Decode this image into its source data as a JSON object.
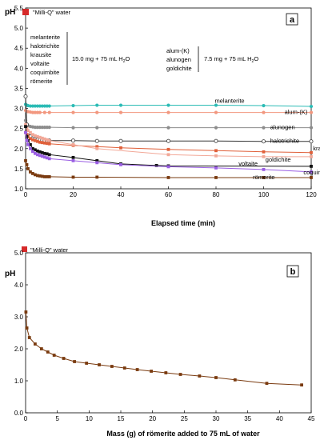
{
  "chart_data": [
    {
      "type": "line",
      "panel_label": "a",
      "ylabel": "pH",
      "xlabel": "Elapsed time (min)",
      "xlim": [
        0,
        120
      ],
      "ylim": [
        1.0,
        5.5
      ],
      "x_ticks": [
        0,
        20,
        40,
        60,
        80,
        100,
        120
      ],
      "y_ticks": [
        1.0,
        1.5,
        2.0,
        2.5,
        3.0,
        3.5,
        4.0,
        4.5,
        5.0,
        5.5
      ],
      "y_tick_labels": [
        "1.0",
        "1.5",
        "2.0",
        "2.5",
        "3.0",
        "3.5",
        "4.0",
        "4.5",
        "5.0",
        "5.5"
      ],
      "reference": {
        "label": "\"Milli-Q\" water",
        "value": 5.45,
        "color": "#d62a2a"
      },
      "group_left": {
        "minerals": [
          "melanterite",
          "halotrichite",
          "krausite",
          "voltaite",
          "coquimbite",
          "römerite"
        ],
        "condition_prefix": "15.0 mg + 75 mL H",
        "condition_sub": "2",
        "condition_suffix": "O"
      },
      "group_right": {
        "minerals": [
          "alum-(K)",
          "alunogen",
          "goldichite"
        ],
        "condition_prefix": "7.5 mg + 75 mL H",
        "condition_sub": "2",
        "condition_suffix": "O"
      },
      "series": [
        {
          "name": "melanterite",
          "color": "#2bbbb5",
          "marker": "circle",
          "x": [
            0,
            0.5,
            1,
            2,
            3,
            4,
            5,
            6,
            7,
            8,
            9,
            10,
            20,
            30,
            40,
            60,
            80,
            100,
            120
          ],
          "y": [
            3.1,
            3.08,
            3.07,
            3.06,
            3.06,
            3.06,
            3.06,
            3.06,
            3.06,
            3.06,
            3.06,
            3.06,
            3.07,
            3.08,
            3.08,
            3.08,
            3.08,
            3.07,
            3.05
          ]
        },
        {
          "name": "alum-(K)",
          "color": "#f2977f",
          "marker": "circle",
          "x": [
            0,
            0.5,
            1,
            2,
            3,
            4,
            5,
            6,
            8,
            10,
            20,
            30,
            40,
            60,
            80,
            100,
            120
          ],
          "y": [
            2.95,
            2.93,
            2.92,
            2.91,
            2.9,
            2.9,
            2.9,
            2.9,
            2.9,
            2.9,
            2.9,
            2.9,
            2.9,
            2.9,
            2.9,
            2.9,
            2.9
          ]
        },
        {
          "name": "alunogen",
          "color": "#8c8c8c",
          "marker": "circle",
          "x": [
            0,
            0.5,
            1,
            2,
            3,
            4,
            5,
            6,
            7,
            8,
            9,
            10,
            20,
            30,
            60,
            80,
            100,
            120
          ],
          "y": [
            2.7,
            2.6,
            2.57,
            2.55,
            2.54,
            2.53,
            2.53,
            2.53,
            2.53,
            2.53,
            2.53,
            2.53,
            2.52,
            2.52,
            2.52,
            2.52,
            2.52,
            2.52
          ]
        },
        {
          "name": "halotrichite",
          "color": "#333333",
          "marker": "circle-open",
          "x": [
            0,
            0.5,
            1,
            2,
            3,
            4,
            5,
            6,
            7,
            8,
            9,
            10,
            20,
            30,
            40,
            60,
            80,
            100,
            120
          ],
          "y": [
            3.3,
            2.6,
            2.4,
            2.3,
            2.25,
            2.23,
            2.22,
            2.21,
            2.21,
            2.2,
            2.2,
            2.2,
            2.2,
            2.19,
            2.19,
            2.19,
            2.19,
            2.18,
            2.18
          ]
        },
        {
          "name": "krausite",
          "color": "#e0603a",
          "marker": "square",
          "x": [
            0,
            0.5,
            1,
            2,
            3,
            4,
            5,
            6,
            7,
            8,
            9,
            10,
            20,
            30,
            40,
            60,
            80,
            100,
            120
          ],
          "y": [
            2.4,
            2.35,
            2.3,
            2.25,
            2.22,
            2.2,
            2.18,
            2.16,
            2.15,
            2.14,
            2.13,
            2.12,
            2.08,
            2.05,
            2.02,
            1.98,
            1.95,
            1.92,
            1.9
          ]
        },
        {
          "name": "goldichite",
          "color": "#f2a898",
          "marker": "square",
          "x": [
            0,
            0.5,
            1,
            2,
            3,
            4,
            5,
            6,
            7,
            8,
            9,
            10,
            20,
            30,
            60,
            80,
            100,
            120
          ],
          "y": [
            2.6,
            2.5,
            2.45,
            2.4,
            2.35,
            2.32,
            2.3,
            2.28,
            2.26,
            2.24,
            2.22,
            2.2,
            2.1,
            2.0,
            1.85,
            1.82,
            1.8,
            1.8
          ]
        },
        {
          "name": "voltaite",
          "color": "#111111",
          "marker": "square",
          "x": [
            0,
            0.5,
            1,
            2,
            3,
            4,
            5,
            6,
            7,
            8,
            9,
            10,
            20,
            30,
            40,
            55,
            60,
            120
          ],
          "y": [
            2.55,
            2.3,
            2.2,
            2.1,
            2.0,
            1.97,
            1.94,
            1.92,
            1.9,
            1.88,
            1.87,
            1.85,
            1.78,
            1.7,
            1.62,
            1.58,
            1.57,
            1.56
          ]
        },
        {
          "name": "coquimbite",
          "color": "#9a5ee3",
          "marker": "square",
          "x": [
            0,
            0.5,
            1,
            2,
            3,
            4,
            5,
            6,
            7,
            8,
            9,
            10,
            20,
            30,
            40,
            60,
            80,
            100,
            120
          ],
          "y": [
            2.4,
            2.2,
            2.1,
            2.0,
            1.93,
            1.88,
            1.85,
            1.83,
            1.81,
            1.79,
            1.77,
            1.75,
            1.7,
            1.65,
            1.6,
            1.55,
            1.52,
            1.48,
            1.42
          ]
        },
        {
          "name": "römerite",
          "color": "#7a3b10",
          "marker": "square",
          "x": [
            0,
            0.5,
            1,
            2,
            3,
            4,
            5,
            6,
            7,
            8,
            9,
            10,
            20,
            30,
            60,
            80,
            100,
            120
          ],
          "y": [
            1.7,
            1.6,
            1.5,
            1.42,
            1.38,
            1.35,
            1.33,
            1.32,
            1.31,
            1.3,
            1.3,
            1.3,
            1.29,
            1.29,
            1.28,
            1.28,
            1.28,
            1.28
          ]
        }
      ]
    },
    {
      "type": "line",
      "panel_label": "b",
      "ylabel": "pH",
      "xlabel": "Mass (g) of römerite added to 75 mL of water",
      "xlim": [
        0,
        45
      ],
      "ylim": [
        0.0,
        5.0
      ],
      "x_ticks": [
        0,
        5,
        10,
        15,
        20,
        25,
        30,
        35,
        40,
        45
      ],
      "y_ticks": [
        0.0,
        1.0,
        2.0,
        3.0,
        4.0,
        5.0
      ],
      "y_tick_labels": [
        "0.0",
        "1.0",
        "2.0",
        "3.0",
        "4.0",
        "5.0"
      ],
      "reference": {
        "label": "\"Milli-Q\" water",
        "value": 5.6,
        "color": "#d62a2a"
      },
      "series": [
        {
          "name": "römerite",
          "color": "#7a3b10",
          "marker": "square",
          "x": [
            0.05,
            0.2,
            0.6,
            1.5,
            2.5,
            3.5,
            4.5,
            6.0,
            7.7,
            9.6,
            11.6,
            13.6,
            15.6,
            17.6,
            19.8,
            22.1,
            24.4,
            27.4,
            30.0,
            33.0,
            38.0,
            43.5
          ],
          "y": [
            3.15,
            2.65,
            2.35,
            2.15,
            2.0,
            1.9,
            1.8,
            1.7,
            1.6,
            1.55,
            1.5,
            1.45,
            1.4,
            1.35,
            1.3,
            1.25,
            1.2,
            1.15,
            1.1,
            1.03,
            0.92,
            0.87
          ]
        }
      ]
    }
  ]
}
